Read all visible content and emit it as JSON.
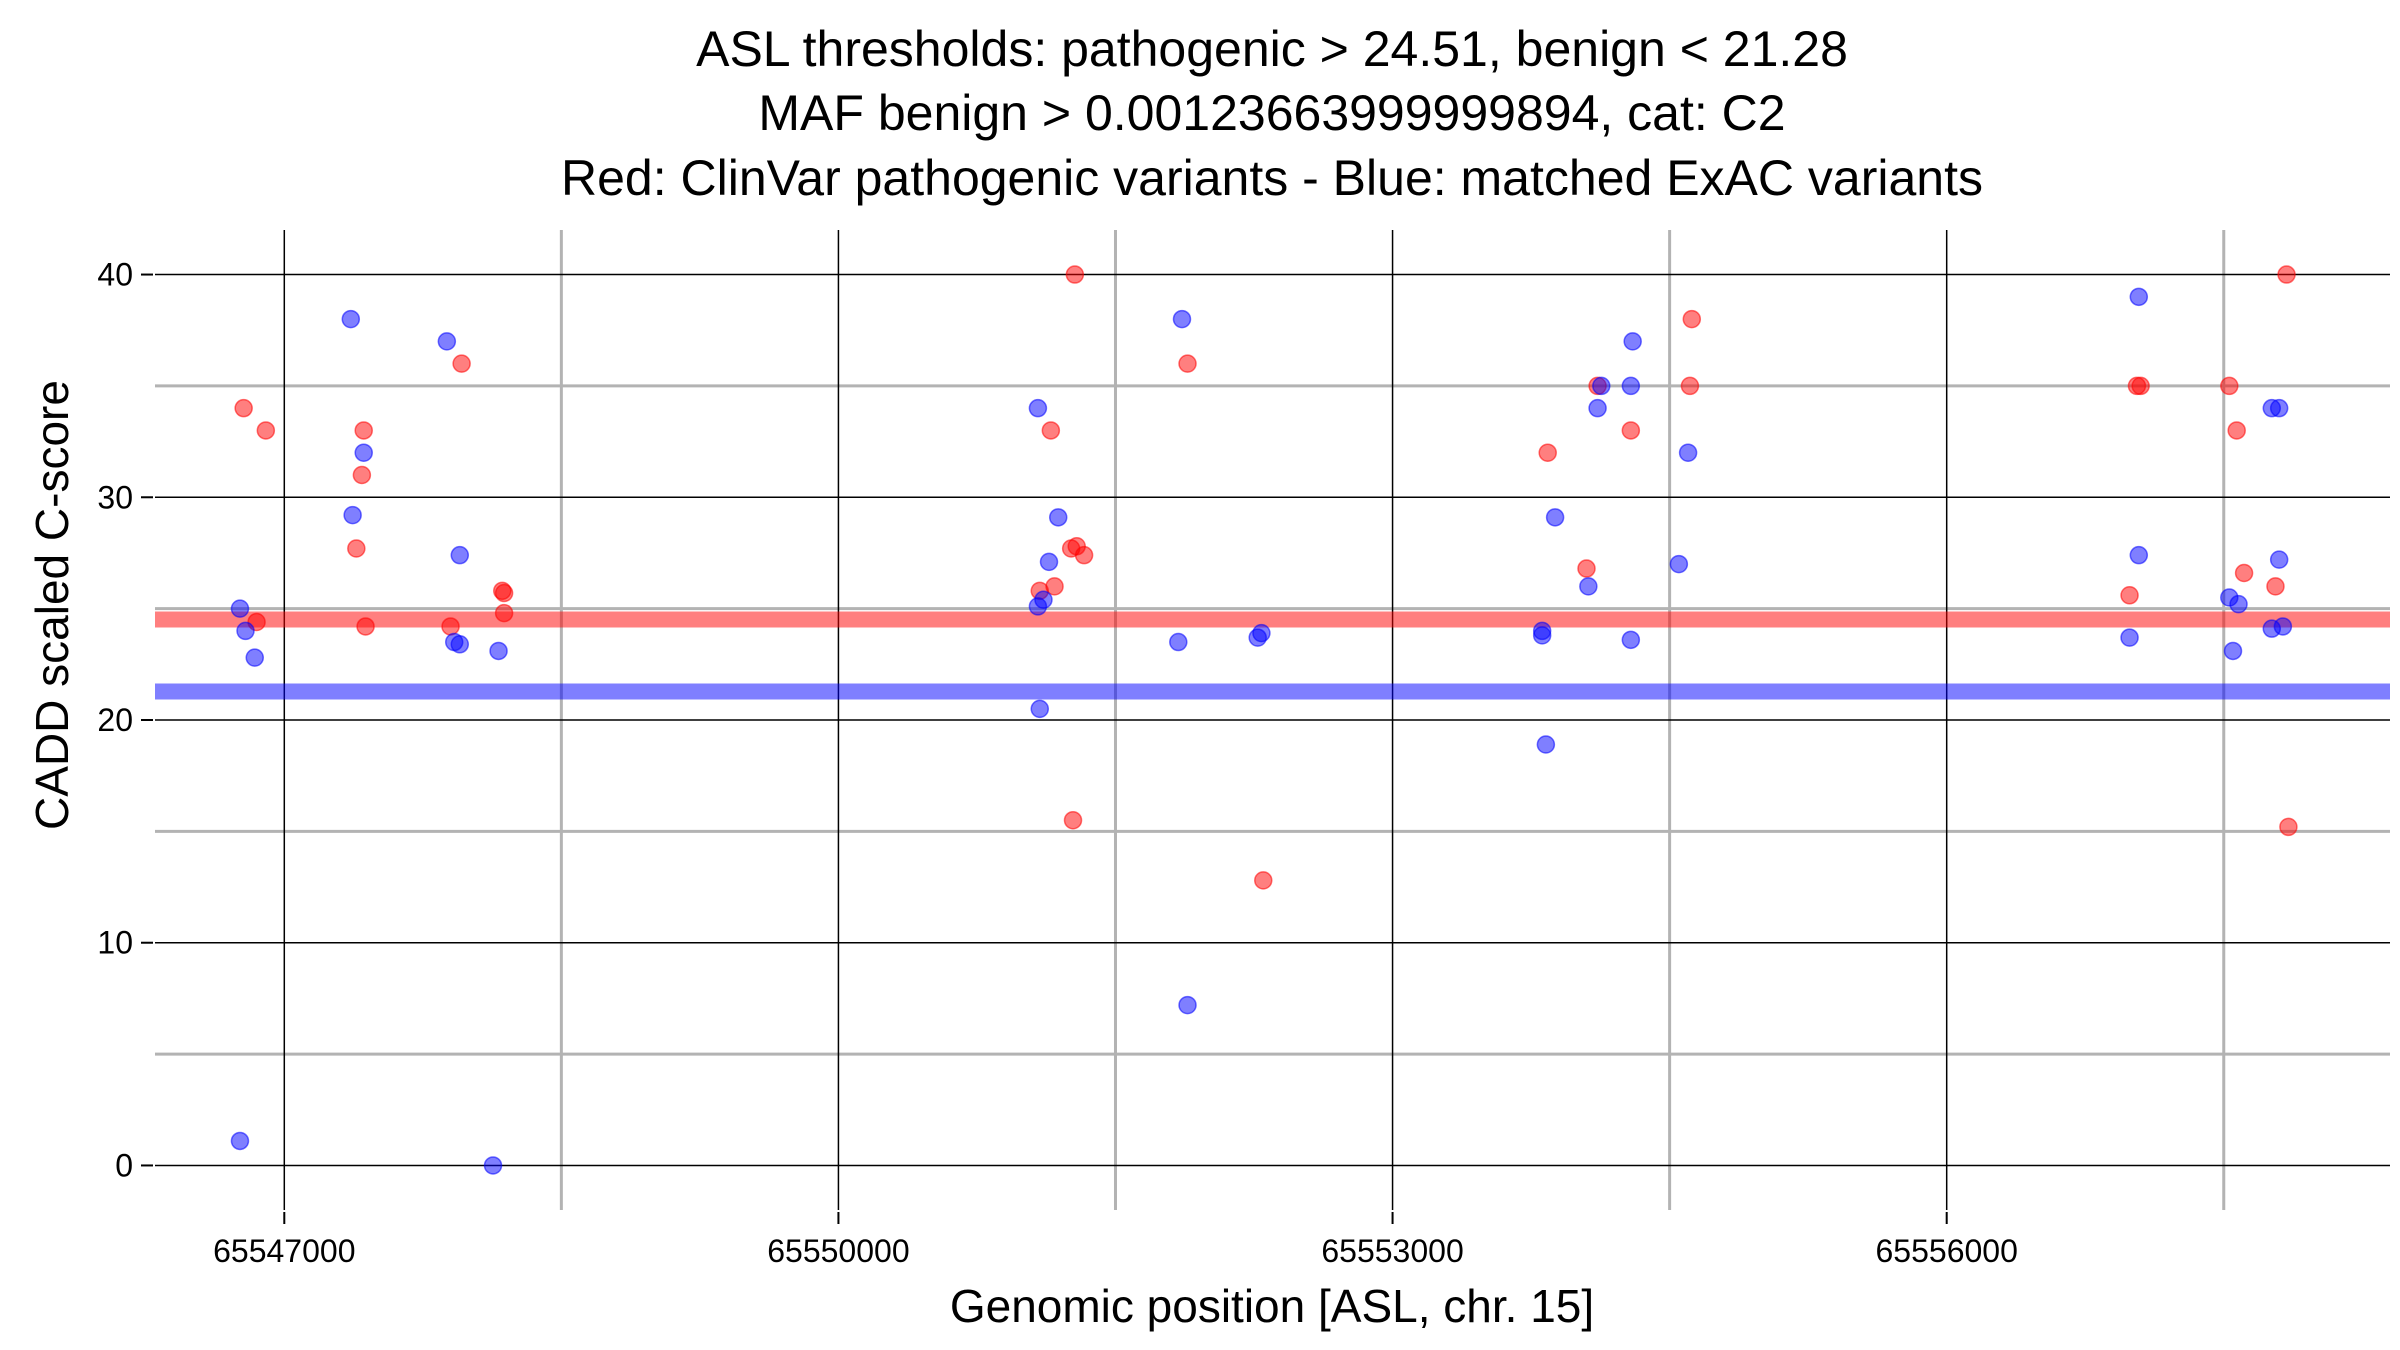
{
  "chart_data": {
    "type": "scatter",
    "title_lines": [
      "ASL thresholds: pathogenic > 24.51, benign < 21.28",
      "MAF benign > 0.00123663999999894, cat: C2",
      "Red: ClinVar pathogenic variants - Blue: matched ExAC variants"
    ],
    "xlabel": "Genomic position [ASL, chr. 15]",
    "ylabel": "CADD scaled C-score",
    "xlim": [
      65546300,
      65558400
    ],
    "ylim": [
      -2,
      42
    ],
    "x_ticks": [
      65547000,
      65550000,
      65553000,
      65556000
    ],
    "x_tick_labels": [
      "65547000",
      "65550000",
      "65553000",
      "65556000"
    ],
    "y_ticks": [
      0,
      10,
      20,
      30,
      40
    ],
    "y_tick_labels": [
      "0",
      "10",
      "20",
      "30",
      "40"
    ],
    "grid": true,
    "colors": {
      "pathogenic": "#ff0000",
      "benign": "#0000ff",
      "major_grid": "#000000",
      "minor_grid": "#b3b3b3"
    },
    "thresholds": [
      {
        "value": 24.51,
        "color": "#ff0000"
      },
      {
        "value": 21.28,
        "color": "#0000ff"
      }
    ],
    "series": [
      {
        "key": "pathogenic",
        "color": "#ff0000",
        "points": [
          [
            65546780,
            34.0
          ],
          [
            65546900,
            33.0
          ],
          [
            65546850,
            24.4
          ],
          [
            65547430,
            33.0
          ],
          [
            65547420,
            31.0
          ],
          [
            65547390,
            27.7
          ],
          [
            65547440,
            24.2
          ],
          [
            65547960,
            36.0
          ],
          [
            65547900,
            24.2
          ],
          [
            65548180,
            25.8
          ],
          [
            65548190,
            25.7
          ],
          [
            65548190,
            24.8
          ],
          [
            65551280,
            40.0
          ],
          [
            65551150,
            33.0
          ],
          [
            65551290,
            27.8
          ],
          [
            65551330,
            27.4
          ],
          [
            65551260,
            27.7
          ],
          [
            65551090,
            25.8
          ],
          [
            65551170,
            26.0
          ],
          [
            65551270,
            15.5
          ],
          [
            65551890,
            36.0
          ],
          [
            65552300,
            12.8
          ],
          [
            65553840,
            32.0
          ],
          [
            65554050,
            26.8
          ],
          [
            65554110,
            35.0
          ],
          [
            65554290,
            33.0
          ],
          [
            65554620,
            38.0
          ],
          [
            65554610,
            35.0
          ],
          [
            65557050,
            35.0
          ],
          [
            65557030,
            35.0
          ],
          [
            65556990,
            25.6
          ],
          [
            65557530,
            35.0
          ],
          [
            65557570,
            33.0
          ],
          [
            65557610,
            26.6
          ],
          [
            65557840,
            40.0
          ],
          [
            65557780,
            26.0
          ],
          [
            65557850,
            15.2
          ]
        ]
      },
      {
        "key": "benign",
        "color": "#0000ff",
        "points": [
          [
            65546760,
            25.0
          ],
          [
            65546790,
            24.0
          ],
          [
            65546840,
            22.8
          ],
          [
            65546760,
            1.1
          ],
          [
            65547360,
            38.0
          ],
          [
            65547430,
            32.0
          ],
          [
            65547370,
            29.2
          ],
          [
            65547880,
            37.0
          ],
          [
            65547950,
            27.4
          ],
          [
            65547920,
            23.5
          ],
          [
            65547950,
            23.4
          ],
          [
            65548160,
            23.1
          ],
          [
            65548130,
            0.0
          ],
          [
            65551080,
            34.0
          ],
          [
            65551190,
            29.1
          ],
          [
            65551140,
            27.1
          ],
          [
            65551110,
            25.4
          ],
          [
            65551080,
            25.1
          ],
          [
            65551090,
            20.5
          ],
          [
            65551860,
            38.0
          ],
          [
            65551840,
            23.5
          ],
          [
            65551890,
            7.2
          ],
          [
            65552270,
            23.7
          ],
          [
            65552290,
            23.9
          ],
          [
            65554300,
            37.0
          ],
          [
            65554290,
            35.0
          ],
          [
            65554130,
            35.0
          ],
          [
            65554110,
            34.0
          ],
          [
            65553880,
            29.1
          ],
          [
            65554060,
            26.0
          ],
          [
            65553810,
            24.0
          ],
          [
            65553810,
            23.8
          ],
          [
            65554290,
            23.6
          ],
          [
            65553830,
            18.9
          ],
          [
            65554600,
            32.0
          ],
          [
            65554550,
            27.0
          ],
          [
            65557040,
            39.0
          ],
          [
            65557040,
            27.4
          ],
          [
            65556990,
            23.7
          ],
          [
            65557760,
            34.0
          ],
          [
            65557800,
            34.0
          ],
          [
            65557800,
            27.2
          ],
          [
            65557530,
            25.5
          ],
          [
            65557580,
            25.2
          ],
          [
            65557550,
            23.1
          ],
          [
            65557760,
            24.1
          ],
          [
            65557820,
            24.2
          ]
        ]
      }
    ]
  }
}
